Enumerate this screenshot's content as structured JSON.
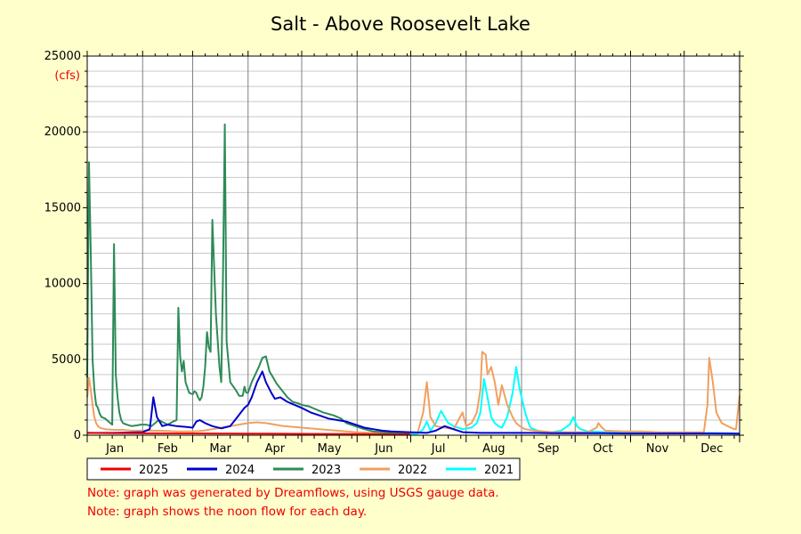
{
  "chart_data": {
    "type": "line",
    "title": "Salt - Above Roosevelt Lake",
    "y_unit": "(cfs)",
    "ylim": [
      0,
      25000
    ],
    "yticks": [
      0,
      5000,
      10000,
      15000,
      20000,
      25000
    ],
    "xlim": [
      0,
      365
    ],
    "months": [
      "Jan",
      "Feb",
      "Mar",
      "Apr",
      "May",
      "Jun",
      "Jul",
      "Aug",
      "Sep",
      "Oct",
      "Nov",
      "Dec"
    ],
    "grid": true,
    "legend_position": "bottom",
    "notes": [
      "Note: graph was generated by Dreamflows, using USGS gauge data.",
      "Note: graph shows the noon flow for each day."
    ],
    "series": [
      {
        "name": "2025",
        "color": "#ee0000",
        "x": [
          0,
          10,
          20,
          31,
          45,
          59,
          75,
          90,
          100,
          110,
          120,
          135,
          151,
          165,
          180,
          181
        ],
        "y": [
          150,
          140,
          130,
          125,
          120,
          115,
          110,
          105,
          100,
          95,
          90,
          80,
          70,
          60,
          55,
          55
        ]
      },
      {
        "name": "2024",
        "color": "#0000cc",
        "x": [
          0,
          15,
          31,
          35,
          37,
          39,
          42,
          45,
          50,
          55,
          59,
          61,
          63,
          66,
          70,
          75,
          80,
          84,
          86,
          88,
          90,
          92,
          95,
          98,
          100,
          103,
          105,
          108,
          112,
          116,
          120,
          125,
          130,
          135,
          140,
          145,
          150,
          155,
          160,
          165,
          170,
          180,
          190,
          195,
          200,
          210,
          220,
          230,
          240,
          250,
          260,
          270,
          280,
          290,
          300,
          310,
          320,
          330,
          340,
          350,
          360,
          365
        ],
        "y": [
          150,
          150,
          200,
          400,
          2500,
          1200,
          600,
          700,
          600,
          550,
          500,
          900,
          1000,
          800,
          600,
          450,
          600,
          1200,
          1500,
          1800,
          2000,
          2500,
          3500,
          4200,
          3500,
          2800,
          2400,
          2500,
          2200,
          2000,
          1800,
          1500,
          1300,
          1100,
          1000,
          900,
          700,
          500,
          400,
          300,
          250,
          200,
          150,
          300,
          600,
          200,
          150,
          150,
          150,
          150,
          130,
          130,
          130,
          130,
          120,
          120,
          120,
          120,
          120,
          120,
          110,
          100
        ]
      },
      {
        "name": "2023",
        "color": "#2e8b57",
        "x": [
          0,
          1,
          2,
          3,
          4,
          5,
          6,
          7,
          8,
          10,
          12,
          14,
          15,
          16,
          17,
          18,
          19,
          20,
          22,
          25,
          28,
          30,
          33,
          36,
          40,
          45,
          48,
          50,
          51,
          52,
          53,
          54,
          55,
          57,
          59,
          60,
          61,
          62,
          63,
          64,
          65,
          66,
          67,
          68,
          69,
          70,
          72,
          74,
          75,
          76,
          77,
          78,
          80,
          83,
          85,
          87,
          88,
          89,
          90,
          92,
          94,
          96,
          98,
          100,
          102,
          104,
          106,
          108,
          110,
          112,
          115,
          118,
          120,
          124,
          128,
          132,
          135,
          138,
          140,
          142,
          145,
          150,
          155,
          160,
          165,
          170,
          175,
          180
        ],
        "y": [
          3800,
          18000,
          12000,
          5000,
          3000,
          2000,
          1800,
          1400,
          1200,
          1100,
          900,
          700,
          12600,
          4000,
          2500,
          1500,
          1000,
          800,
          700,
          600,
          650,
          700,
          700,
          600,
          1000,
          700,
          900,
          1000,
          8400,
          5200,
          4200,
          4900,
          3500,
          2800,
          2700,
          2900,
          2800,
          2500,
          2300,
          2500,
          3200,
          4500,
          6800,
          5800,
          5500,
          14200,
          8000,
          4500,
          3500,
          10700,
          20500,
          6200,
          3500,
          3000,
          2600,
          2600,
          3200,
          2800,
          2800,
          3500,
          4000,
          4500,
          5100,
          5200,
          4200,
          3800,
          3400,
          3100,
          2800,
          2500,
          2200,
          2100,
          2000,
          1900,
          1700,
          1500,
          1400,
          1300,
          1200,
          1100,
          800,
          600,
          400,
          250,
          200,
          150,
          120,
          100
        ]
      },
      {
        "name": "2022",
        "color": "#f0a060",
        "x": [
          0,
          1,
          2,
          3,
          4,
          5,
          6,
          7,
          8,
          10,
          15,
          20,
          25,
          31,
          40,
          50,
          59,
          65,
          70,
          75,
          80,
          85,
          90,
          95,
          100,
          105,
          110,
          120,
          130,
          140,
          150,
          160,
          170,
          175,
          180,
          185,
          188,
          190,
          192,
          195,
          200,
          205,
          210,
          212,
          215,
          218,
          220,
          221,
          223,
          224,
          226,
          228,
          230,
          232,
          235,
          238,
          240,
          242,
          245,
          250,
          255,
          260,
          270,
          280,
          285,
          286,
          288,
          290,
          300,
          310,
          320,
          330,
          340,
          345,
          347,
          348,
          350,
          352,
          355,
          360,
          362,
          363,
          364,
          365
        ],
        "y": [
          2500,
          3800,
          3000,
          2000,
          1200,
          800,
          600,
          500,
          450,
          400,
          350,
          350,
          300,
          300,
          300,
          250,
          250,
          300,
          400,
          500,
          600,
          700,
          800,
          850,
          800,
          700,
          600,
          500,
          400,
          300,
          200,
          150,
          150,
          150,
          150,
          200,
          1500,
          3500,
          1200,
          600,
          500,
          400,
          1500,
          600,
          800,
          1500,
          3000,
          5500,
          5300,
          4000,
          4500,
          3500,
          2000,
          3300,
          2000,
          1200,
          800,
          600,
          400,
          300,
          250,
          200,
          200,
          200,
          500,
          800,
          500,
          300,
          250,
          250,
          200,
          200,
          200,
          200,
          2000,
          5100,
          3500,
          1500,
          800,
          500,
          400,
          400,
          1500,
          2600
        ]
      },
      {
        "name": "2021",
        "color": "#00ffff",
        "x": [
          181,
          185,
          188,
          190,
          191,
          192,
          195,
          198,
          200,
          202,
          205,
          210,
          215,
          218,
          220,
          222,
          224,
          226,
          228,
          230,
          232,
          235,
          238,
          240,
          242,
          245,
          247,
          248,
          250,
          252,
          255,
          260,
          265,
          270,
          272,
          274,
          276,
          280,
          290,
          300,
          310,
          320,
          330,
          340,
          350,
          360,
          365
        ],
        "y": [
          50,
          100,
          400,
          900,
          600,
          300,
          800,
          1600,
          1200,
          800,
          600,
          400,
          500,
          800,
          1500,
          3700,
          2500,
          1200,
          800,
          600,
          500,
          1200,
          2800,
          4500,
          3000,
          1500,
          800,
          500,
          400,
          300,
          250,
          200,
          300,
          700,
          1200,
          600,
          400,
          250,
          200,
          180,
          170,
          160,
          150,
          150,
          140,
          130,
          120
        ]
      }
    ]
  }
}
